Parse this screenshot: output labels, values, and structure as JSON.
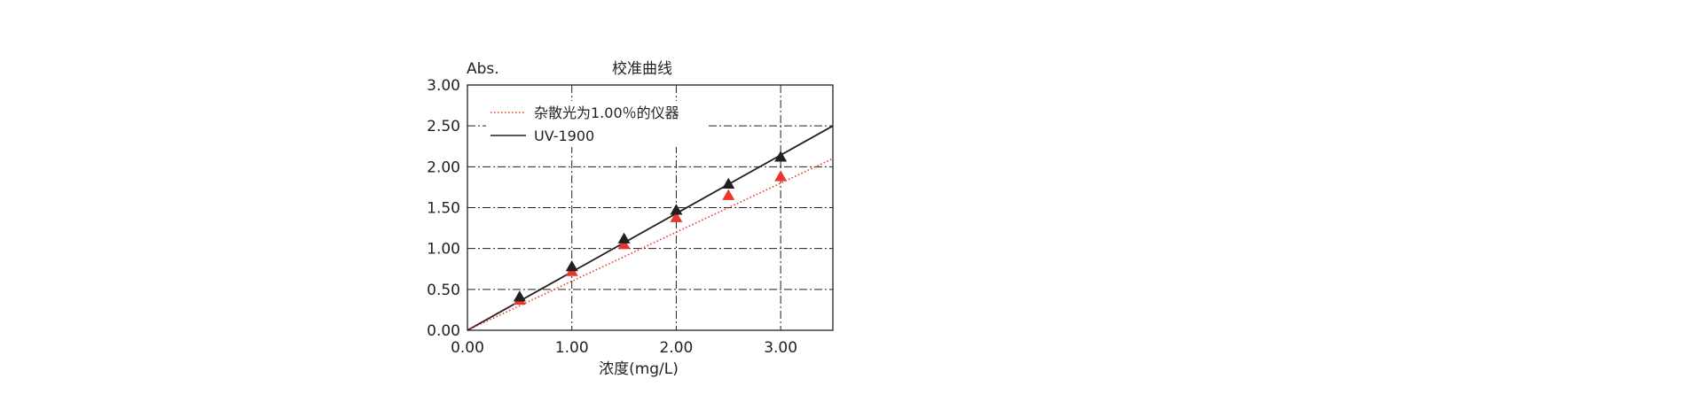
{
  "chart_data": {
    "type": "scatter",
    "title": "校准曲线",
    "ylabel": "Abs.",
    "xlabel": "浓度(mg/L)",
    "xlim": [
      0,
      3.5
    ],
    "ylim": [
      0,
      3.0
    ],
    "xticks": [
      "0.00",
      "1.00",
      "2.00",
      "3.00"
    ],
    "yticks": [
      "0.00",
      "0.50",
      "1.00",
      "1.50",
      "2.00",
      "2.50",
      "3.00"
    ],
    "grid": true,
    "legend_position": "top-left",
    "series": [
      {
        "name": "杂散光为1.00％的仪器",
        "color": "#e8382b",
        "line_style": "dotted",
        "marker": "triangle",
        "points": [
          {
            "x": 0.5,
            "y": 0.37
          },
          {
            "x": 1.0,
            "y": 0.72
          },
          {
            "x": 1.5,
            "y": 1.05
          },
          {
            "x": 2.0,
            "y": 1.38
          },
          {
            "x": 2.5,
            "y": 1.65
          },
          {
            "x": 3.0,
            "y": 1.88
          }
        ],
        "fit_line": [
          {
            "x": 0,
            "y": 0
          },
          {
            "x": 3.5,
            "y": 2.1
          }
        ]
      },
      {
        "name": "UV-1900",
        "color": "#231f20",
        "line_style": "solid",
        "marker": "triangle",
        "points": [
          {
            "x": 0.5,
            "y": 0.41
          },
          {
            "x": 1.0,
            "y": 0.78
          },
          {
            "x": 1.5,
            "y": 1.12
          },
          {
            "x": 2.0,
            "y": 1.47
          },
          {
            "x": 2.5,
            "y": 1.79
          },
          {
            "x": 3.0,
            "y": 2.12
          }
        ],
        "fit_line": [
          {
            "x": 0,
            "y": 0
          },
          {
            "x": 3.5,
            "y": 2.5
          }
        ]
      }
    ]
  }
}
